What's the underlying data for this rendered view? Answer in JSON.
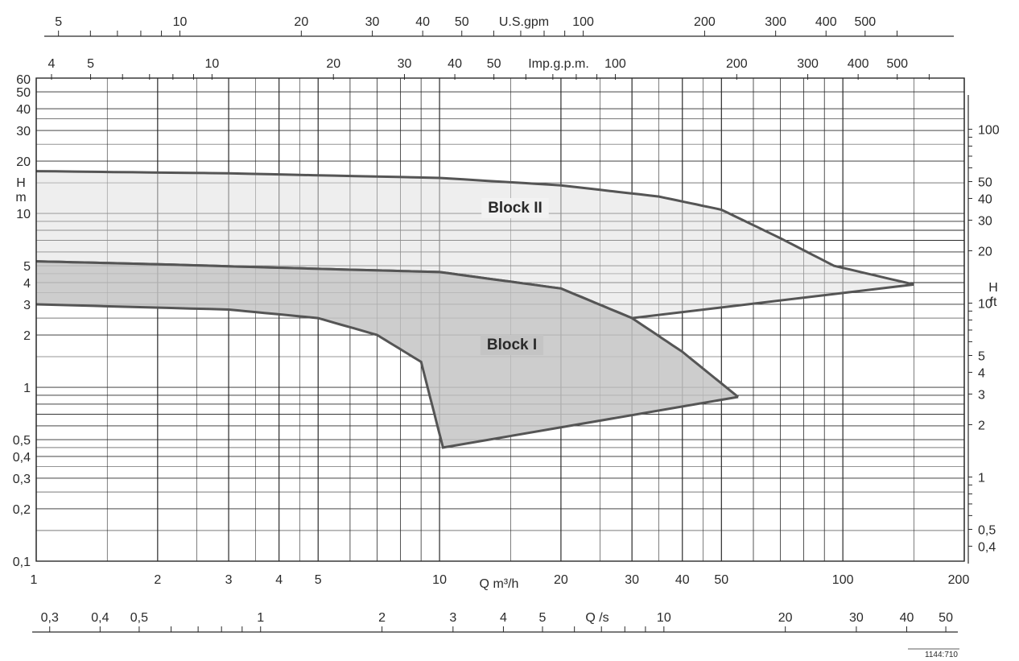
{
  "chart_data": {
    "type": "area",
    "scale": "log-log",
    "grid": true,
    "colors": {
      "line": "#555555",
      "fill": "#c4c4c4",
      "fill_light": "#e0e0e0",
      "grid": "#2a2a2a",
      "text": "#2a2a2a"
    },
    "x_main": {
      "label": "Q m³/h",
      "range": [
        1,
        200
      ],
      "tick_labels": [
        "1",
        "2",
        "3",
        "4",
        "5",
        "10",
        "20",
        "30",
        "40",
        "50",
        "100",
        "200"
      ],
      "tick_values": [
        1,
        2,
        3,
        4,
        5,
        10,
        20,
        30,
        40,
        50,
        100,
        200
      ]
    },
    "y_main": {
      "label_top": "H",
      "label_bottom": "m",
      "range": [
        0.1,
        60
      ],
      "tick_labels": [
        "0,1",
        "0,2",
        "0,3",
        "0,4",
        "0,5",
        "1",
        "2",
        "3",
        "4",
        "5",
        "10",
        "20",
        "30",
        "40",
        "50",
        "60"
      ],
      "tick_values": [
        0.1,
        0.2,
        0.3,
        0.4,
        0.5,
        1,
        2,
        3,
        4,
        5,
        10,
        20,
        30,
        40,
        50,
        60
      ]
    },
    "y_right": {
      "label_top": "H",
      "label_bottom": "ft",
      "tick_labels": [
        "0,4",
        "0,5",
        "1",
        "2",
        "3",
        "4",
        "5",
        "10",
        "20",
        "30",
        "40",
        "50",
        "100"
      ],
      "tick_values": [
        0.4,
        0.5,
        1,
        2,
        3,
        4,
        5,
        10,
        20,
        30,
        40,
        50,
        100
      ]
    },
    "x_usgpm": {
      "label": "U.S.gpm",
      "tick_labels": [
        "5",
        "10",
        "20",
        "30",
        "40",
        "50",
        "100",
        "200",
        "300",
        "400",
        "500"
      ],
      "tick_values": [
        5,
        10,
        20,
        30,
        40,
        50,
        100,
        200,
        300,
        400,
        500
      ]
    },
    "x_impgpm": {
      "label": "Imp.g.p.m.",
      "tick_labels": [
        "4",
        "5",
        "10",
        "20",
        "30",
        "40",
        "50",
        "100",
        "200",
        "300",
        "400",
        "500"
      ],
      "tick_values": [
        4,
        5,
        10,
        20,
        30,
        40,
        50,
        100,
        200,
        300,
        400,
        500
      ]
    },
    "x_ls": {
      "label": "Q /s",
      "tick_labels": [
        "0,3",
        "0,4",
        "0,5",
        "1",
        "2",
        "3",
        "4",
        "5",
        "10",
        "20",
        "30",
        "40",
        "50"
      ],
      "tick_values": [
        0.3,
        0.4,
        0.5,
        1,
        2,
        3,
        4,
        5,
        10,
        20,
        30,
        40,
        50
      ]
    },
    "regions": [
      {
        "name": "Block II",
        "upper": [
          [
            1,
            17.5
          ],
          [
            3,
            17
          ],
          [
            10,
            16
          ],
          [
            20,
            14.5
          ],
          [
            35,
            12.5
          ],
          [
            50,
            10.5
          ],
          [
            70,
            7.2
          ],
          [
            95,
            5
          ],
          [
            150,
            3.9
          ]
        ],
        "lower": [
          [
            1,
            5.3
          ],
          [
            2,
            5.1
          ],
          [
            5,
            4.8
          ],
          [
            10,
            4.6
          ],
          [
            20,
            3.7
          ],
          [
            30,
            2.5
          ],
          [
            150,
            3.9
          ]
        ]
      },
      {
        "name": "Block I",
        "upper": [
          [
            1,
            5.3
          ],
          [
            2,
            5.1
          ],
          [
            5,
            4.8
          ],
          [
            10,
            4.6
          ],
          [
            20,
            3.7
          ],
          [
            30,
            2.5
          ],
          [
            40,
            1.6
          ],
          [
            55,
            0.88
          ]
        ],
        "lower": [
          [
            1,
            3
          ],
          [
            3,
            2.8
          ],
          [
            5,
            2.5
          ],
          [
            7,
            2
          ],
          [
            9,
            1.4
          ],
          [
            10.2,
            0.45
          ],
          [
            55,
            0.88
          ]
        ]
      }
    ],
    "figure_code": "1144:710"
  }
}
